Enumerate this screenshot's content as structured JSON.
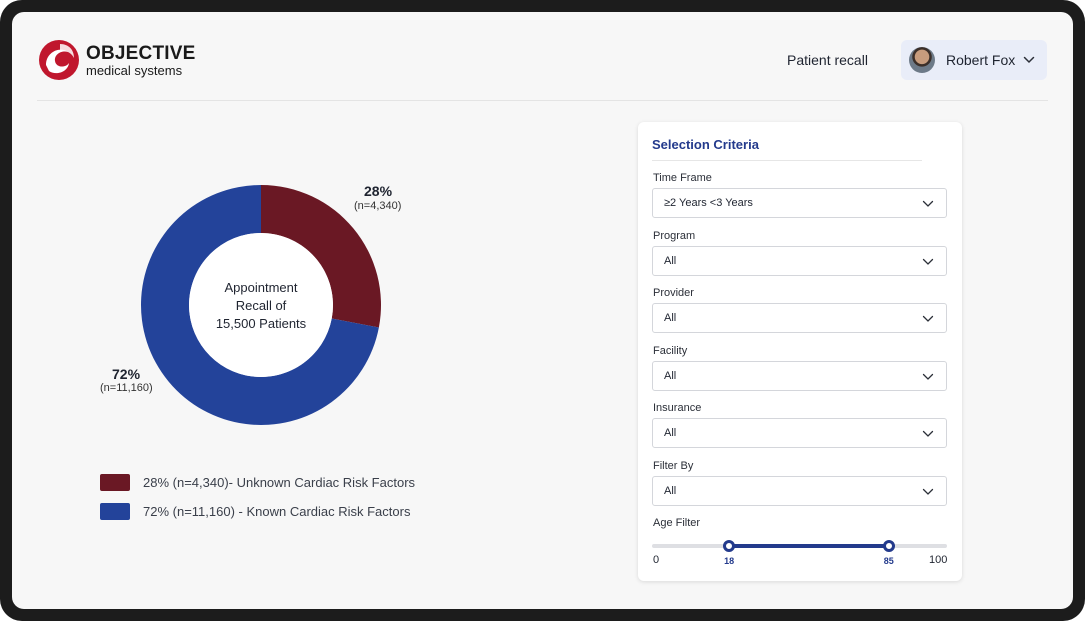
{
  "brand": {
    "name": "OBJECTIVE",
    "tagline": "medical systems",
    "logo_color": "#c0172d"
  },
  "header": {
    "nav_link": "Patient recall",
    "user": {
      "name": "Robert Fox",
      "avatar": "user-avatar-photo"
    }
  },
  "chart_data": {
    "type": "pie",
    "donut": true,
    "center_label": [
      "Appointment",
      "Recall of",
      "15,500 Patients"
    ],
    "slices": [
      {
        "label": "Unknown Cardiac Risk Factors",
        "value": 28,
        "n": 4340,
        "pct_label": "28%",
        "n_label": "(n=4,340)",
        "color": "#6a1824"
      },
      {
        "label": "Known Cardiac Risk Factors",
        "value": 72,
        "n": 11160,
        "pct_label": "72%",
        "n_label": "(n=11,160)",
        "color": "#23439a"
      }
    ],
    "legend": [
      "28% (n=4,340)- Unknown Cardiac Risk Factors",
      "72% (n=11,160) - Known Cardiac Risk Factors"
    ],
    "legend_placement": "bottom"
  },
  "criteria": {
    "title": "Selection Criteria",
    "fields": [
      {
        "label": "Time Frame",
        "value": "≥2 Years <3 Years"
      },
      {
        "label": "Program",
        "value": "All"
      },
      {
        "label": "Provider",
        "value": "All"
      },
      {
        "label": "Facility",
        "value": "All"
      },
      {
        "label": "Insurance",
        "value": "All"
      },
      {
        "label": "Filter By",
        "value": "All"
      }
    ],
    "age_filter": {
      "label": "Age Filter",
      "min": 0,
      "max": 100,
      "low": 18,
      "high": 85,
      "min_label": "0",
      "max_label": "100",
      "low_label": "18",
      "high_label": "85"
    }
  },
  "icons": {
    "dropdown": "chevron-down-icon"
  },
  "colors": {
    "accent": "#233a8c"
  }
}
